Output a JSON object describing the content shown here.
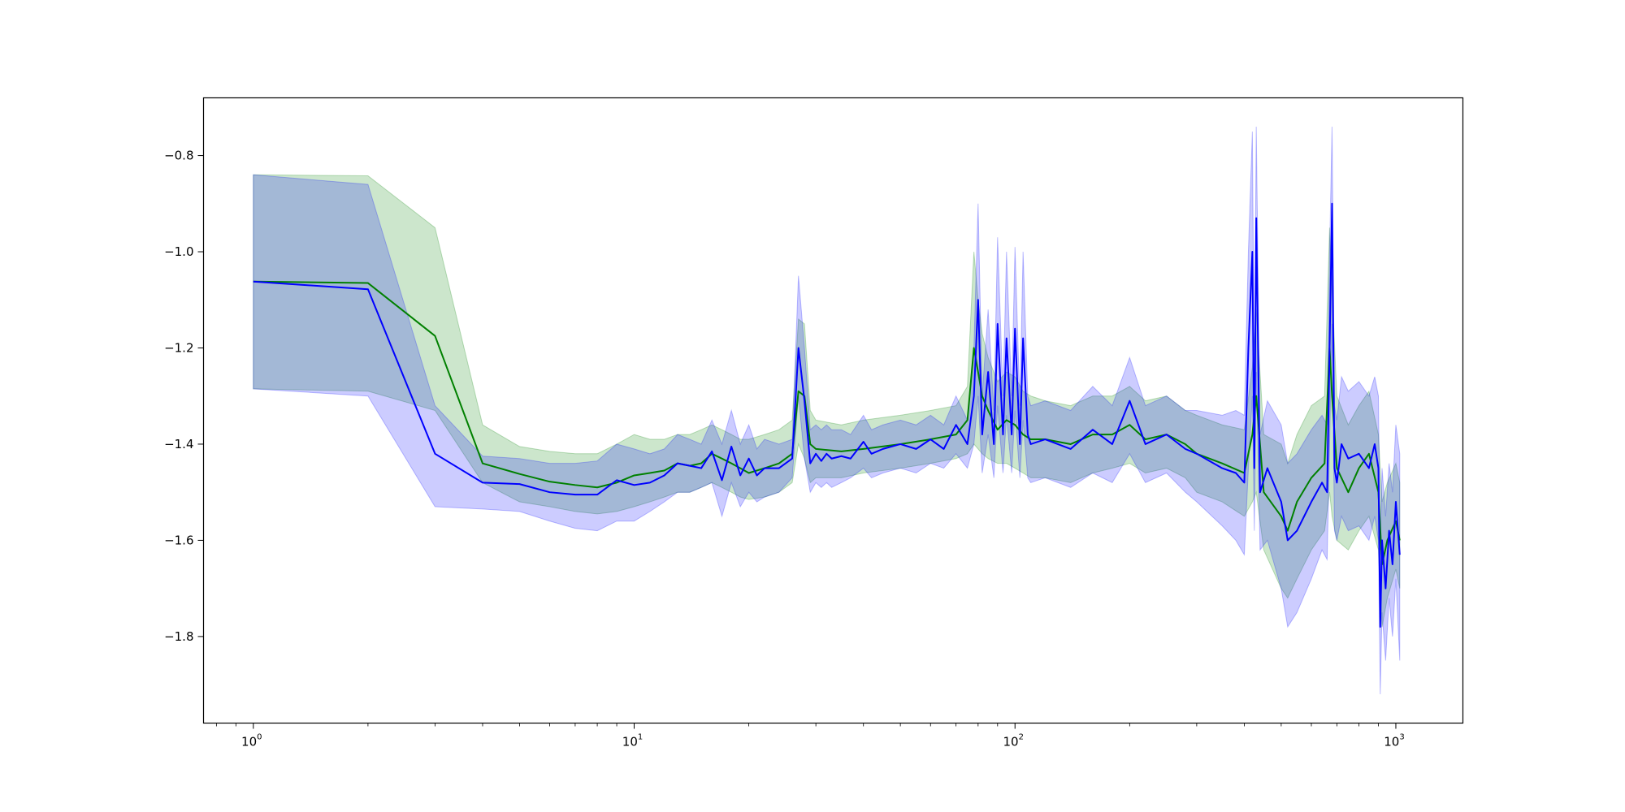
{
  "chart_data": {
    "type": "line",
    "title": "",
    "xlabel": "",
    "ylabel": "",
    "x_scale": "log",
    "xlim": [
      0.74,
      1500
    ],
    "ylim": [
      -1.98,
      -0.68
    ],
    "x_major_ticks": [
      {
        "value": 1,
        "base": "10",
        "exp": "0"
      },
      {
        "value": 10,
        "base": "10",
        "exp": "1"
      },
      {
        "value": 100,
        "base": "10",
        "exp": "2"
      },
      {
        "value": 1000,
        "base": "10",
        "exp": "3"
      }
    ],
    "y_ticks": [
      {
        "value": -0.8,
        "label": "−0.8"
      },
      {
        "value": -1.0,
        "label": "−1.0"
      },
      {
        "value": -1.2,
        "label": "−1.2"
      },
      {
        "value": -1.4,
        "label": "−1.4"
      },
      {
        "value": -1.6,
        "label": "−1.6"
      },
      {
        "value": -1.8,
        "label": "−1.8"
      }
    ],
    "grid": false,
    "legend": false,
    "series": [
      {
        "color": "#008000",
        "band_color": "#008000",
        "x": [
          1,
          2,
          3,
          4,
          5,
          6,
          7,
          8,
          9,
          10,
          11,
          12,
          13,
          14,
          15,
          16,
          17,
          18,
          19,
          20,
          22,
          24,
          26,
          27,
          28,
          29,
          30,
          35,
          40,
          50,
          60,
          70,
          75,
          78,
          80,
          82,
          85,
          90,
          95,
          100,
          105,
          110,
          120,
          140,
          160,
          180,
          200,
          220,
          250,
          280,
          300,
          350,
          400,
          420,
          430,
          450,
          500,
          520,
          550,
          600,
          650,
          670,
          680,
          700,
          750,
          800,
          850,
          900,
          920,
          950,
          1000,
          1024
        ],
        "y": [
          -1.062,
          -1.065,
          -1.175,
          -1.44,
          -1.462,
          -1.478,
          -1.485,
          -1.49,
          -1.48,
          -1.465,
          -1.46,
          -1.455,
          -1.44,
          -1.445,
          -1.44,
          -1.42,
          -1.43,
          -1.44,
          -1.45,
          -1.46,
          -1.45,
          -1.44,
          -1.42,
          -1.29,
          -1.3,
          -1.4,
          -1.41,
          -1.415,
          -1.41,
          -1.4,
          -1.39,
          -1.38,
          -1.35,
          -1.2,
          -1.25,
          -1.3,
          -1.33,
          -1.37,
          -1.35,
          -1.36,
          -1.38,
          -1.39,
          -1.39,
          -1.4,
          -1.38,
          -1.38,
          -1.36,
          -1.39,
          -1.38,
          -1.4,
          -1.42,
          -1.44,
          -1.46,
          -1.38,
          -1.3,
          -1.5,
          -1.55,
          -1.58,
          -1.52,
          -1.47,
          -1.44,
          -1.2,
          -1.3,
          -1.45,
          -1.5,
          -1.45,
          -1.42,
          -1.5,
          -1.65,
          -1.6,
          -1.56,
          -1.6
        ],
        "lower": [
          -1.285,
          -1.29,
          -1.33,
          -1.48,
          -1.52,
          -1.53,
          -1.54,
          -1.545,
          -1.54,
          -1.53,
          -1.52,
          -1.51,
          -1.5,
          -1.5,
          -1.49,
          -1.48,
          -1.49,
          -1.5,
          -1.51,
          -1.515,
          -1.51,
          -1.5,
          -1.48,
          -1.4,
          -1.43,
          -1.48,
          -1.47,
          -1.47,
          -1.46,
          -1.45,
          -1.44,
          -1.43,
          -1.42,
          -1.4,
          -1.41,
          -1.42,
          -1.43,
          -1.44,
          -1.44,
          -1.45,
          -1.46,
          -1.47,
          -1.47,
          -1.48,
          -1.46,
          -1.45,
          -1.44,
          -1.46,
          -1.45,
          -1.47,
          -1.5,
          -1.52,
          -1.55,
          -1.52,
          -1.5,
          -1.62,
          -1.7,
          -1.72,
          -1.68,
          -1.62,
          -1.58,
          -1.5,
          -1.55,
          -1.6,
          -1.62,
          -1.58,
          -1.55,
          -1.62,
          -1.78,
          -1.72,
          -1.66,
          -1.7
        ],
        "upper": [
          -0.84,
          -0.842,
          -0.95,
          -1.36,
          -1.405,
          -1.415,
          -1.42,
          -1.42,
          -1.4,
          -1.38,
          -1.39,
          -1.39,
          -1.38,
          -1.38,
          -1.37,
          -1.36,
          -1.37,
          -1.38,
          -1.39,
          -1.39,
          -1.38,
          -1.37,
          -1.35,
          -1.14,
          -1.15,
          -1.33,
          -1.35,
          -1.36,
          -1.35,
          -1.34,
          -1.33,
          -1.32,
          -1.28,
          -1.0,
          -1.1,
          -1.17,
          -1.22,
          -1.27,
          -1.25,
          -1.26,
          -1.29,
          -1.3,
          -1.31,
          -1.32,
          -1.3,
          -1.3,
          -1.28,
          -1.31,
          -1.3,
          -1.33,
          -1.34,
          -1.36,
          -1.37,
          -1.24,
          -1.12,
          -1.38,
          -1.4,
          -1.44,
          -1.38,
          -1.32,
          -1.3,
          -0.95,
          -1.08,
          -1.3,
          -1.36,
          -1.32,
          -1.29,
          -1.38,
          -1.52,
          -1.48,
          -1.44,
          -1.48
        ]
      },
      {
        "color": "#0000ff",
        "band_color": "#0000ff",
        "x": [
          1,
          2,
          3,
          4,
          5,
          6,
          7,
          8,
          9,
          10,
          11,
          12,
          13,
          14,
          15,
          16,
          17,
          18,
          19,
          20,
          21,
          22,
          24,
          26,
          27,
          28,
          29,
          30,
          31,
          32,
          33,
          35,
          37,
          40,
          42,
          45,
          50,
          55,
          60,
          65,
          70,
          75,
          78,
          80,
          82,
          85,
          88,
          90,
          93,
          95,
          98,
          100,
          103,
          105,
          108,
          110,
          120,
          140,
          160,
          180,
          200,
          220,
          250,
          280,
          300,
          350,
          380,
          400,
          410,
          420,
          425,
          430,
          440,
          460,
          500,
          520,
          550,
          600,
          640,
          660,
          670,
          680,
          690,
          700,
          720,
          750,
          800,
          850,
          880,
          900,
          910,
          920,
          940,
          960,
          980,
          1000,
          1024
        ],
        "y": [
          -1.062,
          -1.078,
          -1.42,
          -1.48,
          -1.483,
          -1.5,
          -1.505,
          -1.505,
          -1.475,
          -1.485,
          -1.48,
          -1.465,
          -1.44,
          -1.445,
          -1.45,
          -1.415,
          -1.475,
          -1.405,
          -1.465,
          -1.43,
          -1.465,
          -1.45,
          -1.45,
          -1.43,
          -1.2,
          -1.31,
          -1.44,
          -1.42,
          -1.435,
          -1.42,
          -1.43,
          -1.425,
          -1.43,
          -1.395,
          -1.42,
          -1.41,
          -1.4,
          -1.41,
          -1.39,
          -1.41,
          -1.36,
          -1.4,
          -1.3,
          -1.1,
          -1.38,
          -1.25,
          -1.4,
          -1.15,
          -1.38,
          -1.18,
          -1.38,
          -1.16,
          -1.4,
          -1.18,
          -1.38,
          -1.4,
          -1.39,
          -1.41,
          -1.37,
          -1.4,
          -1.31,
          -1.4,
          -1.38,
          -1.41,
          -1.42,
          -1.45,
          -1.46,
          -1.48,
          -1.2,
          -1.0,
          -1.45,
          -0.93,
          -1.5,
          -1.45,
          -1.52,
          -1.6,
          -1.58,
          -1.52,
          -1.48,
          -1.5,
          -1.2,
          -0.9,
          -1.45,
          -1.48,
          -1.4,
          -1.43,
          -1.42,
          -1.45,
          -1.4,
          -1.45,
          -1.78,
          -1.6,
          -1.7,
          -1.58,
          -1.65,
          -1.52,
          -1.63
        ],
        "lower": [
          -1.285,
          -1.3,
          -1.53,
          -1.535,
          -1.54,
          -1.56,
          -1.575,
          -1.58,
          -1.56,
          -1.56,
          -1.54,
          -1.52,
          -1.5,
          -1.5,
          -1.49,
          -1.48,
          -1.55,
          -1.48,
          -1.53,
          -1.5,
          -1.52,
          -1.51,
          -1.5,
          -1.47,
          -1.3,
          -1.43,
          -1.5,
          -1.48,
          -1.49,
          -1.48,
          -1.49,
          -1.48,
          -1.47,
          -1.45,
          -1.47,
          -1.46,
          -1.45,
          -1.46,
          -1.44,
          -1.45,
          -1.42,
          -1.45,
          -1.4,
          -1.3,
          -1.46,
          -1.38,
          -1.47,
          -1.32,
          -1.46,
          -1.34,
          -1.46,
          -1.33,
          -1.47,
          -1.35,
          -1.47,
          -1.48,
          -1.47,
          -1.49,
          -1.46,
          -1.48,
          -1.42,
          -1.48,
          -1.46,
          -1.5,
          -1.52,
          -1.57,
          -1.6,
          -1.63,
          -1.45,
          -1.3,
          -1.58,
          -1.25,
          -1.62,
          -1.6,
          -1.7,
          -1.78,
          -1.75,
          -1.68,
          -1.62,
          -1.64,
          -1.4,
          -1.15,
          -1.58,
          -1.6,
          -1.55,
          -1.58,
          -1.57,
          -1.6,
          -1.55,
          -1.6,
          -1.92,
          -1.75,
          -1.85,
          -1.72,
          -1.8,
          -1.68,
          -1.85
        ],
        "upper": [
          -0.84,
          -0.86,
          -1.32,
          -1.425,
          -1.43,
          -1.44,
          -1.44,
          -1.435,
          -1.4,
          -1.41,
          -1.42,
          -1.41,
          -1.38,
          -1.39,
          -1.4,
          -1.35,
          -1.4,
          -1.33,
          -1.4,
          -1.36,
          -1.41,
          -1.39,
          -1.4,
          -1.39,
          -1.05,
          -1.2,
          -1.37,
          -1.36,
          -1.37,
          -1.36,
          -1.37,
          -1.37,
          -1.38,
          -1.34,
          -1.37,
          -1.36,
          -1.35,
          -1.36,
          -1.34,
          -1.36,
          -1.3,
          -1.35,
          -1.2,
          -0.9,
          -1.3,
          -1.12,
          -1.33,
          -0.97,
          -1.3,
          -1.0,
          -1.3,
          -0.99,
          -1.32,
          -1.0,
          -1.3,
          -1.32,
          -1.31,
          -1.33,
          -1.28,
          -1.32,
          -1.22,
          -1.32,
          -1.3,
          -1.33,
          -1.33,
          -1.34,
          -1.33,
          -1.34,
          -1.0,
          -0.75,
          -1.3,
          -0.74,
          -1.38,
          -1.31,
          -1.36,
          -1.44,
          -1.42,
          -1.37,
          -1.34,
          -1.36,
          -1.0,
          -0.74,
          -1.32,
          -1.35,
          -1.26,
          -1.29,
          -1.27,
          -1.3,
          -1.26,
          -1.3,
          -1.62,
          -1.45,
          -1.55,
          -1.44,
          -1.5,
          -1.36,
          -1.42
        ]
      }
    ]
  }
}
